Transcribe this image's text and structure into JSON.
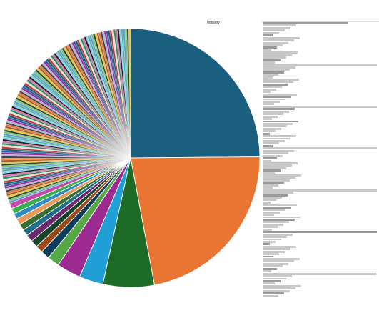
{
  "chart_data": {
    "type": "pie",
    "title": "Industry",
    "legend": "right",
    "slices": [
      {
        "share": 24.8,
        "color": "#1a5f7d"
      },
      {
        "share": 22.1,
        "color": "#e87531"
      },
      {
        "share": 6.4,
        "color": "#1e6b28"
      },
      {
        "share": 3.0,
        "color": "#1f9fd6"
      },
      {
        "share": 3.0,
        "color": "#9c2a90"
      },
      {
        "share": 1.5,
        "color": "#56a746"
      },
      {
        "share": 1.1,
        "color": "#0f3d5c"
      },
      {
        "share": 0.9,
        "color": "#9a4a1a"
      },
      {
        "share": 0.9,
        "color": "#16442a"
      },
      {
        "share": 0.9,
        "color": "#6a2a6c"
      },
      {
        "share": 0.8,
        "color": "#1f6f8b"
      },
      {
        "share": 0.8,
        "color": "#3a6e2e"
      },
      {
        "share": 0.8,
        "color": "#e89a5c"
      },
      {
        "share": 0.7,
        "color": "#2a8ac4"
      },
      {
        "share": 0.7,
        "color": "#3bb04a"
      },
      {
        "share": 0.7,
        "color": "#c44aa6"
      }
    ],
    "remainder_share": 30.6,
    "remainder_slices": 130,
    "remainder_palette": [
      "#222222",
      "#1a5f7d",
      "#e87531",
      "#5aa0d8",
      "#2e8b57",
      "#9c2a90",
      "#f0c040",
      "#7fd0f0",
      "#c0392b",
      "#444444",
      "#88c070",
      "#d070b0",
      "#3060a0",
      "#a06030",
      "#60b0a0",
      "#e0e0e0",
      "#b0b0e0",
      "#205030"
    ],
    "legend_items": 112
  }
}
